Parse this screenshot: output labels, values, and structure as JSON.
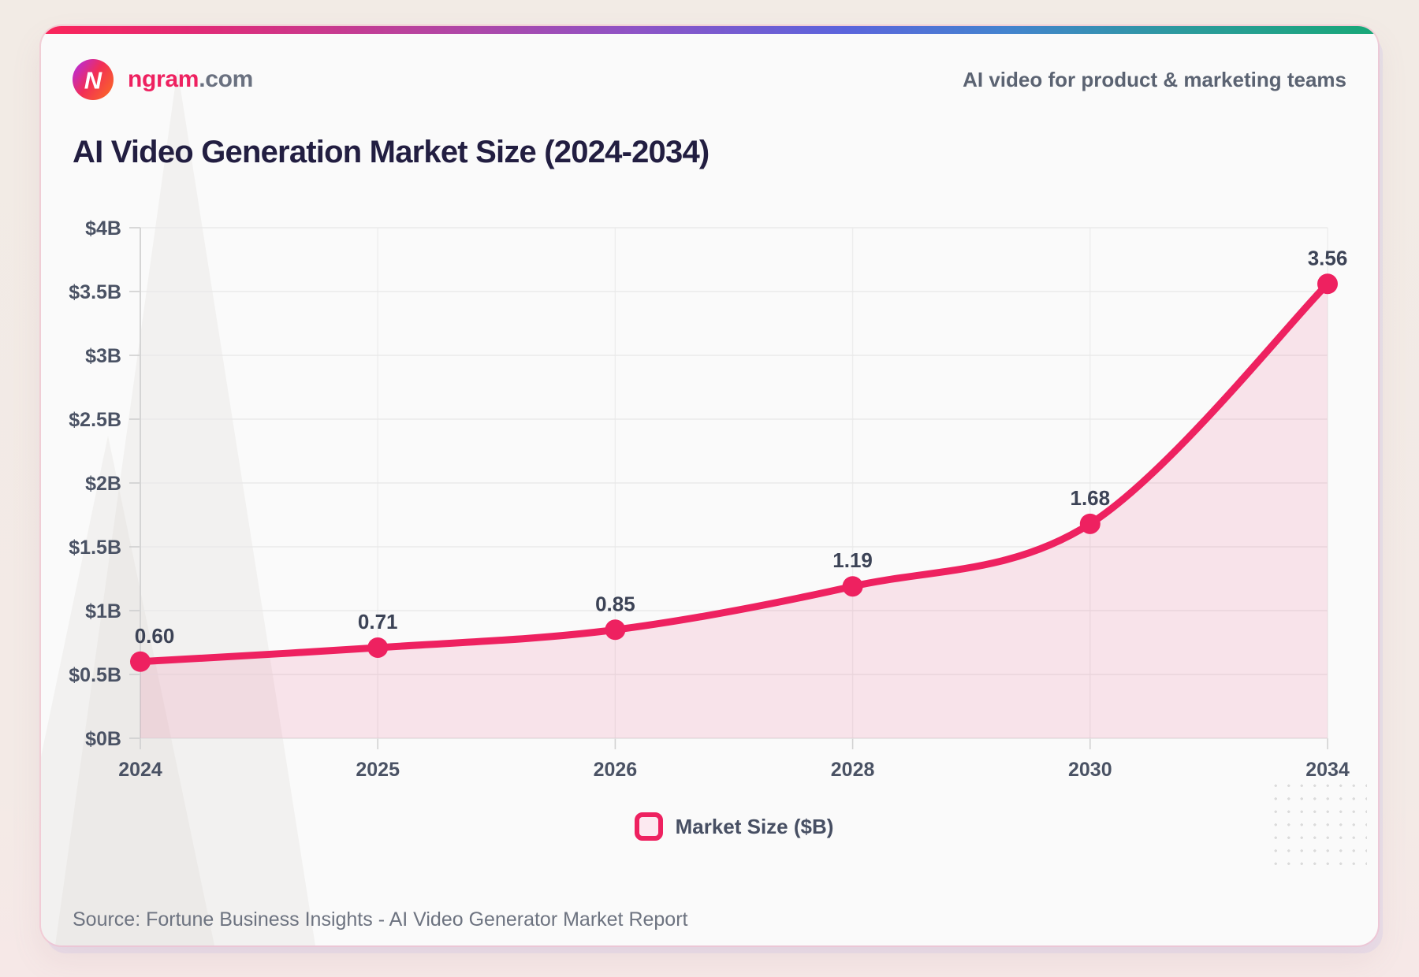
{
  "colors": {
    "accent": "#ee2160",
    "title_color": "#221e41",
    "card_bg": "#fafafa",
    "page_bg": "#f2ebe5"
  },
  "header": {
    "brand": "ngram",
    "domain": ".com",
    "tagline": "AI video for product & marketing teams"
  },
  "title": "AI Video Generation Market Size (2024-2034)",
  "chart_data": {
    "type": "area",
    "title": "AI Video Generation Market Size (2024-2034)",
    "categories": [
      "2024",
      "2025",
      "2026",
      "2028",
      "2030",
      "2034"
    ],
    "series": [
      {
        "name": "Market Size ($B)",
        "values": [
          0.6,
          0.71,
          0.85,
          1.19,
          1.68,
          3.56
        ]
      }
    ],
    "data_labels": [
      "0.60",
      "0.71",
      "0.85",
      "1.19",
      "1.68",
      "3.56"
    ],
    "xlabel": "",
    "ylabel": "",
    "ylim": [
      0,
      4
    ],
    "y_ticks": [
      "$0B",
      "$0.5B",
      "$1B",
      "$1.5B",
      "$2B",
      "$2.5B",
      "$3B",
      "$3.5B",
      "$4B"
    ],
    "grid": true,
    "legend_position": "bottom",
    "colors": {
      "line": "#ee2160",
      "point": "#ee2160",
      "fill": "rgba(238,33,96,0.10)",
      "legend_fill": "#fce9f0"
    }
  },
  "legend": {
    "label": "Market Size ($B)"
  },
  "source": "Source: Fortune Business Insights - AI Video Generator Market Report"
}
